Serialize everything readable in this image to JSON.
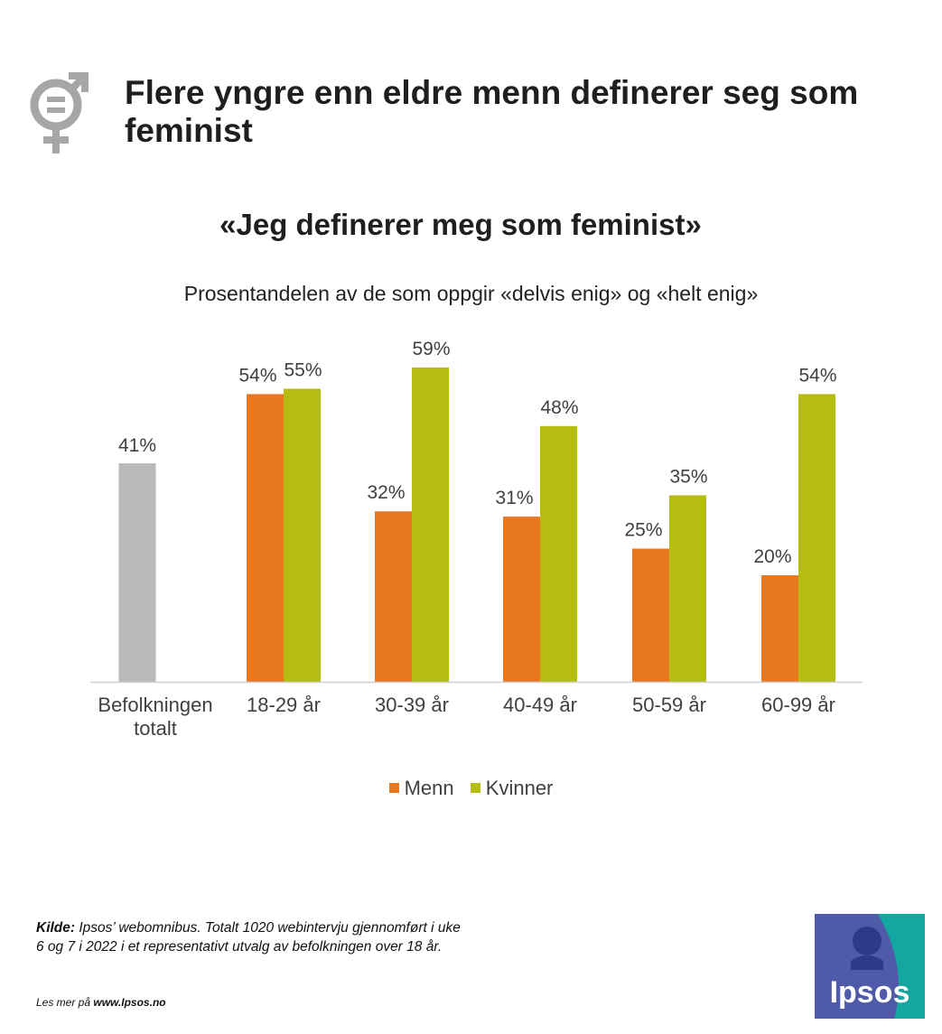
{
  "headline": "Flere yngre enn eldre menn definerer seg som feminist",
  "icon": "gender-equality-icon",
  "colors": {
    "menn": "#e87722",
    "kvinner": "#b5bd12",
    "total": "#b8b9bb",
    "logo_blue": "#4f5aa8",
    "logo_teal": "#14a6a0"
  },
  "chart_data": {
    "type": "bar",
    "title": "«Jeg definerer meg som feminist»",
    "subtitle": "Prosentandelen av de som oppgir «delvis enig» og «helt enig»",
    "categories": [
      "Befolkningen totalt",
      "18-29 år",
      "30-39 år",
      "40-49 år",
      "50-59 år",
      "60-99 år"
    ],
    "total": {
      "category": "Befolkningen totalt",
      "value": 41,
      "label": "41%"
    },
    "series": [
      {
        "name": "Menn",
        "values": [
          null,
          54,
          32,
          31,
          25,
          20
        ],
        "labels": [
          "",
          "54%",
          "32%",
          "31%",
          "25%",
          "20%"
        ]
      },
      {
        "name": "Kvinner",
        "values": [
          null,
          55,
          59,
          48,
          35,
          54
        ],
        "labels": [
          "",
          "55%",
          "59%",
          "48%",
          "35%",
          "54%"
        ]
      }
    ],
    "ylim": [
      0,
      65
    ],
    "grid": false,
    "legend": "bottom"
  },
  "legend": {
    "menn": "Menn",
    "kvinner": "Kvinner"
  },
  "source": {
    "label": "Kilde:",
    "text": "Ipsos’ webomnibus. Totalt 1020 webintervju gjennomført i uke 6 og 7 i 2022 i et representativt utvalg av befolkningen over 18 år."
  },
  "more": {
    "prefix": "Les mer på",
    "link": "www.Ipsos.no"
  },
  "logo": {
    "text": "Ipsos"
  }
}
